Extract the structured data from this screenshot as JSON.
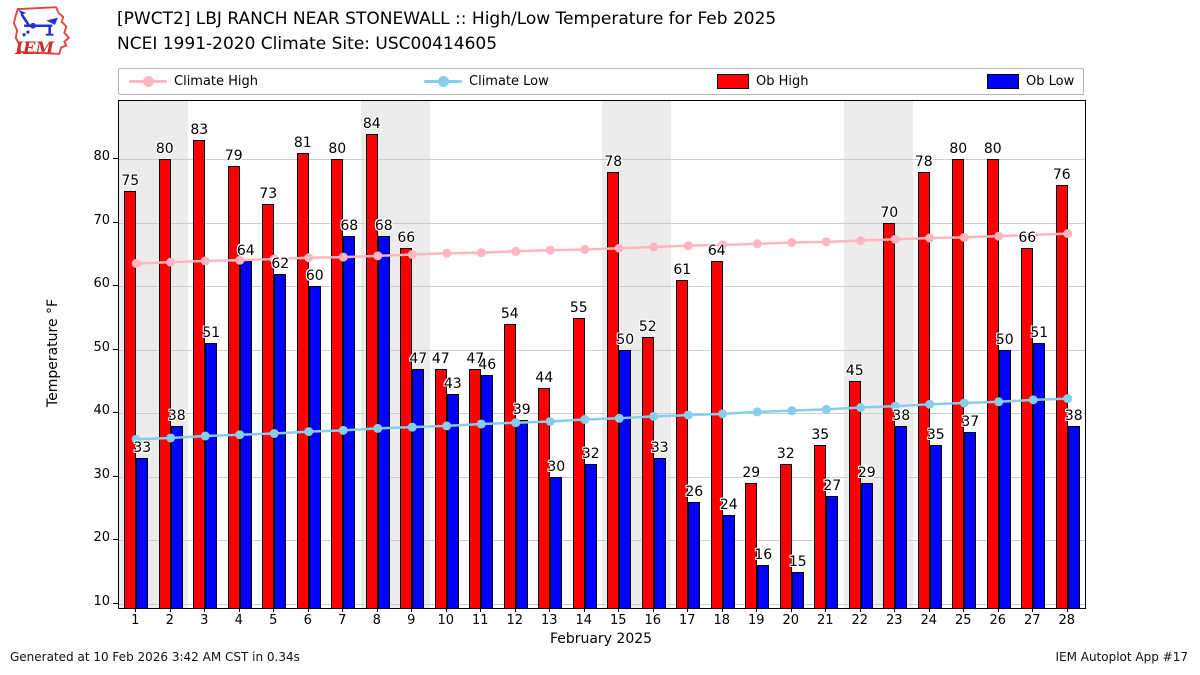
{
  "header": {
    "title_line1": "[PWCT2] LBJ RANCH NEAR STONEWALL :: High/Low Temperature for Feb 2025",
    "title_line2": "NCEI 1991-2020 Climate Site: USC00414605",
    "logo_text": "IEM"
  },
  "legend": {
    "items": [
      {
        "label": "Climate High",
        "type": "line",
        "color": "#ffb6c1"
      },
      {
        "label": "Climate Low",
        "type": "line",
        "color": "#87ceeb"
      },
      {
        "label": "Ob High",
        "type": "swatch",
        "color": "#ff0000"
      },
      {
        "label": "Ob Low",
        "type": "swatch",
        "color": "#0000ff"
      }
    ]
  },
  "chart_data": {
    "type": "bar",
    "title": "[PWCT2] LBJ RANCH NEAR STONEWALL :: High/Low Temperature for Feb 2025",
    "subtitle": "NCEI 1991-2020 Climate Site: USC00414605",
    "xlabel": "February 2025",
    "ylabel": "Temperature °F",
    "x": [
      1,
      2,
      3,
      4,
      5,
      6,
      7,
      8,
      9,
      10,
      11,
      12,
      13,
      14,
      15,
      16,
      17,
      18,
      19,
      20,
      21,
      22,
      23,
      24,
      25,
      26,
      27,
      28
    ],
    "series": [
      {
        "name": "Ob High",
        "type": "bar",
        "color": "#ff0000",
        "values": [
          75,
          80,
          83,
          79,
          73,
          81,
          80,
          84,
          66,
          47,
          47,
          54,
          44,
          55,
          78,
          52,
          61,
          64,
          29,
          32,
          35,
          45,
          70,
          78,
          80,
          80,
          66,
          76
        ]
      },
      {
        "name": "Ob Low",
        "type": "bar",
        "color": "#0000ff",
        "values": [
          33,
          38,
          51,
          64,
          62,
          60,
          68,
          68,
          47,
          43,
          46,
          39,
          30,
          32,
          50,
          33,
          26,
          24,
          16,
          15,
          27,
          29,
          38,
          35,
          37,
          50,
          51,
          38
        ]
      },
      {
        "name": "Climate High",
        "type": "line",
        "color": "#ffb6c1",
        "values": [
          63.6,
          63.8,
          64.0,
          64.1,
          64.3,
          64.5,
          64.6,
          64.8,
          65.0,
          65.2,
          65.3,
          65.5,
          65.7,
          65.8,
          66.0,
          66.2,
          66.4,
          66.5,
          66.7,
          66.9,
          67.0,
          67.2,
          67.4,
          67.6,
          67.7,
          67.9,
          68.1,
          68.3
        ]
      },
      {
        "name": "Climate Low",
        "type": "line",
        "color": "#87ceeb",
        "values": [
          35.9,
          36.1,
          36.4,
          36.6,
          36.8,
          37.1,
          37.3,
          37.6,
          37.8,
          38.0,
          38.3,
          38.5,
          38.7,
          39.0,
          39.2,
          39.5,
          39.7,
          39.9,
          40.2,
          40.4,
          40.6,
          40.9,
          41.1,
          41.4,
          41.6,
          41.8,
          42.1,
          42.3
        ]
      }
    ],
    "yticks": [
      10,
      20,
      30,
      40,
      50,
      60,
      70,
      80
    ],
    "ylim": [
      9.3,
      89.2
    ],
    "grid": true,
    "grid_color": "#cccccc",
    "weekend_bands": [
      [
        1,
        2
      ],
      [
        8,
        9
      ],
      [
        15,
        16
      ],
      [
        22,
        23
      ]
    ],
    "band_color": "#ececec",
    "legend_position": "top"
  },
  "footer": {
    "left": "Generated at 10 Feb 2026 3:42 AM CST in 0.34s",
    "right": "IEM Autoplot App #17"
  }
}
